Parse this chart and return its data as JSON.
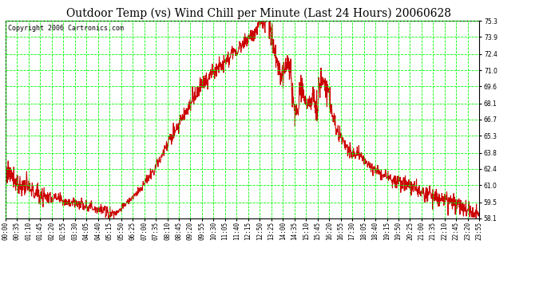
{
  "title": "Outdoor Temp (vs) Wind Chill per Minute (Last 24 Hours) 20060628",
  "copyright": "Copyright 2006 Cartronics.com",
  "background_color": "#ffffff",
  "plot_bg_color": "#ffffff",
  "grid_color": "#00ff00",
  "line_color": "#cc0000",
  "line_width": 0.8,
  "ylim": [
    58.1,
    75.3
  ],
  "yticks": [
    58.1,
    59.5,
    61.0,
    62.4,
    63.8,
    65.3,
    66.7,
    68.1,
    69.6,
    71.0,
    72.4,
    73.9,
    75.3
  ],
  "xtick_labels": [
    "00:00",
    "00:35",
    "01:10",
    "01:45",
    "02:20",
    "02:55",
    "03:30",
    "04:05",
    "04:40",
    "05:15",
    "05:50",
    "06:25",
    "07:00",
    "07:35",
    "08:10",
    "08:45",
    "09:20",
    "09:55",
    "10:30",
    "11:05",
    "11:40",
    "12:15",
    "12:50",
    "13:25",
    "14:00",
    "14:35",
    "15:10",
    "15:45",
    "16:20",
    "16:55",
    "17:30",
    "18:05",
    "18:40",
    "19:15",
    "19:50",
    "20:25",
    "21:00",
    "21:35",
    "22:10",
    "22:45",
    "23:20",
    "23:55"
  ],
  "num_minutes": 1440,
  "title_fontsize": 10,
  "tick_fontsize": 5.5,
  "copyright_fontsize": 6,
  "base_hours": [
    0.0,
    0.25,
    0.5,
    0.75,
    1.0,
    1.5,
    2.0,
    2.5,
    3.0,
    3.5,
    4.0,
    4.5,
    5.0,
    5.3,
    5.6,
    6.0,
    6.5,
    7.0,
    7.5,
    8.0,
    8.5,
    9.0,
    9.5,
    10.0,
    10.5,
    11.0,
    11.5,
    12.0,
    12.5,
    13.0,
    13.2,
    13.4,
    13.6,
    14.0,
    14.3,
    14.5,
    14.7,
    15.0,
    15.3,
    15.6,
    15.8,
    16.0,
    16.2,
    16.5,
    16.8,
    17.0,
    17.5,
    18.0,
    18.3,
    18.5,
    19.0,
    19.5,
    20.0,
    20.5,
    21.0,
    21.5,
    22.0,
    22.5,
    23.0,
    23.5,
    23.75,
    24.0
  ],
  "base_temps": [
    62.4,
    62.0,
    61.5,
    61.0,
    60.8,
    60.3,
    60.0,
    59.8,
    59.6,
    59.5,
    59.3,
    59.0,
    58.7,
    58.5,
    58.6,
    59.2,
    60.0,
    61.0,
    62.3,
    63.8,
    65.5,
    67.0,
    68.5,
    69.8,
    70.8,
    71.6,
    72.4,
    73.2,
    74.2,
    75.0,
    75.2,
    74.8,
    72.5,
    70.5,
    72.0,
    70.5,
    69.5,
    69.3,
    67.8,
    68.5,
    67.5,
    68.8,
    68.2,
    67.5,
    65.8,
    65.0,
    63.8,
    63.5,
    62.8,
    62.5,
    62.0,
    61.5,
    61.2,
    61.0,
    60.5,
    60.2,
    59.8,
    59.5,
    59.2,
    58.6,
    58.5,
    58.8
  ]
}
